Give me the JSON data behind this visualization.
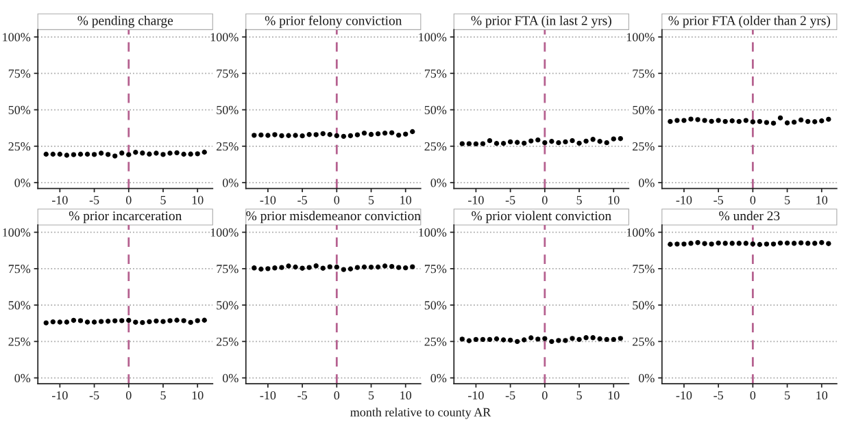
{
  "chart_data": [
    {
      "type": "scatter",
      "title": "% pending charge",
      "x": [
        -12,
        -11,
        -10,
        -9,
        -8,
        -7,
        -6,
        -5,
        -4,
        -3,
        -2,
        -1,
        0,
        1,
        2,
        3,
        4,
        5,
        6,
        7,
        8,
        9,
        10,
        11
      ],
      "series": [
        {
          "color": "#000000",
          "values": [
            19.5,
            19.5,
            19.5,
            18.8,
            19.2,
            19.5,
            19.5,
            19.3,
            20.2,
            19.3,
            18.3,
            20.3,
            19.2,
            20.8,
            20.3,
            19.6,
            20.2,
            19.3,
            20.2,
            20.5,
            19.5,
            19.6,
            19.8,
            20.9
          ]
        }
      ],
      "xlim": [
        -13.2,
        12.2
      ],
      "ylim": [
        -4,
        105
      ],
      "xticks": [
        -10,
        -5,
        0,
        5,
        10
      ],
      "yticks": [
        {
          "value": 0,
          "label": "0%"
        },
        {
          "value": 25,
          "label": "25%"
        },
        {
          "value": 50,
          "label": "50%"
        },
        {
          "value": 75,
          "label": "75%"
        },
        {
          "value": 100,
          "label": "100%"
        }
      ],
      "ref_lines": [
        {
          "axis": "x",
          "value": 0,
          "color": "#b5608f",
          "line_style": "dashed"
        }
      ],
      "grid": "y",
      "marker": "circle"
    },
    {
      "type": "scatter",
      "title": "% prior felony conviction",
      "x": [
        -12,
        -11,
        -10,
        -9,
        -8,
        -7,
        -6,
        -5,
        -4,
        -3,
        -2,
        -1,
        0,
        1,
        2,
        3,
        4,
        5,
        6,
        7,
        8,
        9,
        10,
        11
      ],
      "series": [
        {
          "color": "#000000",
          "values": [
            32.5,
            32.7,
            32.4,
            32.9,
            32.2,
            32.3,
            32.4,
            32.1,
            33.0,
            32.9,
            33.6,
            33.0,
            32.2,
            31.8,
            32.2,
            32.8,
            34.0,
            33.1,
            33.5,
            34.0,
            34.2,
            32.6,
            33.3,
            35.0
          ]
        }
      ],
      "xlim": [
        -13.2,
        12.2
      ],
      "ylim": [
        -4,
        105
      ],
      "xticks": [
        -10,
        -5,
        0,
        5,
        10
      ],
      "yticks": [
        {
          "value": 0,
          "label": "0%"
        },
        {
          "value": 25,
          "label": "25%"
        },
        {
          "value": 50,
          "label": "50%"
        },
        {
          "value": 75,
          "label": "75%"
        },
        {
          "value": 100,
          "label": "100%"
        }
      ],
      "ref_lines": [
        {
          "axis": "x",
          "value": 0,
          "color": "#b5608f",
          "line_style": "dashed"
        }
      ],
      "grid": "y",
      "marker": "circle"
    },
    {
      "type": "scatter",
      "title": "% prior FTA (in last 2 yrs)",
      "x": [
        -12,
        -11,
        -10,
        -9,
        -8,
        -7,
        -6,
        -5,
        -4,
        -3,
        -2,
        -1,
        0,
        1,
        2,
        3,
        4,
        5,
        6,
        7,
        8,
        9,
        10,
        11
      ],
      "series": [
        {
          "color": "#000000",
          "values": [
            26.7,
            26.7,
            26.6,
            26.7,
            28.8,
            26.9,
            26.9,
            28.0,
            27.6,
            27.1,
            28.6,
            29.3,
            27.4,
            28.3,
            27.4,
            28.0,
            28.8,
            27.1,
            28.5,
            29.7,
            28.3,
            27.4,
            30.0,
            30.2
          ]
        }
      ],
      "xlim": [
        -13.2,
        12.2
      ],
      "ylim": [
        -4,
        105
      ],
      "xticks": [
        -10,
        -5,
        0,
        5,
        10
      ],
      "yticks": [
        {
          "value": 0,
          "label": "0%"
        },
        {
          "value": 25,
          "label": "25%"
        },
        {
          "value": 50,
          "label": "50%"
        },
        {
          "value": 75,
          "label": "75%"
        },
        {
          "value": 100,
          "label": "100%"
        }
      ],
      "ref_lines": [
        {
          "axis": "x",
          "value": 0,
          "color": "#b5608f",
          "line_style": "dashed"
        }
      ],
      "grid": "y",
      "marker": "circle"
    },
    {
      "type": "scatter",
      "title": "% prior FTA (older than 2 yrs)",
      "x": [
        -12,
        -11,
        -10,
        -9,
        -8,
        -7,
        -6,
        -5,
        -4,
        -3,
        -2,
        -1,
        0,
        1,
        2,
        3,
        4,
        5,
        6,
        7,
        8,
        9,
        10,
        11
      ],
      "series": [
        {
          "color": "#000000",
          "values": [
            42.0,
            42.7,
            42.7,
            43.6,
            43.3,
            42.7,
            42.1,
            42.7,
            42.0,
            42.4,
            42.0,
            42.7,
            41.7,
            42.0,
            41.3,
            40.8,
            44.4,
            41.0,
            41.5,
            43.0,
            42.0,
            41.8,
            42.4,
            43.5
          ]
        }
      ],
      "xlim": [
        -13.2,
        12.2
      ],
      "ylim": [
        -4,
        105
      ],
      "xticks": [
        -10,
        -5,
        0,
        5,
        10
      ],
      "yticks": [
        {
          "value": 0,
          "label": "0%"
        },
        {
          "value": 25,
          "label": "25%"
        },
        {
          "value": 50,
          "label": "50%"
        },
        {
          "value": 75,
          "label": "75%"
        },
        {
          "value": 100,
          "label": "100%"
        }
      ],
      "ref_lines": [
        {
          "axis": "x",
          "value": 0,
          "color": "#b5608f",
          "line_style": "dashed"
        }
      ],
      "grid": "y",
      "marker": "circle"
    },
    {
      "type": "scatter",
      "title": "% prior incarceration",
      "x": [
        -12,
        -11,
        -10,
        -9,
        -8,
        -7,
        -6,
        -5,
        -4,
        -3,
        -2,
        -1,
        0,
        1,
        2,
        3,
        4,
        5,
        6,
        7,
        8,
        9,
        10,
        11
      ],
      "series": [
        {
          "color": "#000000",
          "values": [
            37.8,
            38.5,
            38.3,
            38.3,
            39.5,
            39.3,
            38.3,
            38.3,
            38.7,
            38.9,
            39.2,
            39.3,
            39.5,
            38.2,
            38.0,
            38.6,
            39.1,
            38.7,
            39.3,
            39.6,
            39.3,
            38.1,
            39.3,
            39.6
          ]
        }
      ],
      "xlim": [
        -13.2,
        12.2
      ],
      "ylim": [
        -4,
        105
      ],
      "xticks": [
        -10,
        -5,
        0,
        5,
        10
      ],
      "yticks": [
        {
          "value": 0,
          "label": "0%"
        },
        {
          "value": 25,
          "label": "25%"
        },
        {
          "value": 50,
          "label": "50%"
        },
        {
          "value": 75,
          "label": "75%"
        },
        {
          "value": 100,
          "label": "100%"
        }
      ],
      "ref_lines": [
        {
          "axis": "x",
          "value": 0,
          "color": "#b5608f",
          "line_style": "dashed"
        }
      ],
      "grid": "y",
      "marker": "circle"
    },
    {
      "type": "scatter",
      "title": "% prior misdemeanor conviction",
      "xlabel": "month relative to county AR",
      "x": [
        -12,
        -11,
        -10,
        -9,
        -8,
        -7,
        -6,
        -5,
        -4,
        -3,
        -2,
        -1,
        0,
        1,
        2,
        3,
        4,
        5,
        6,
        7,
        8,
        9,
        10,
        11
      ],
      "series": [
        {
          "color": "#000000",
          "values": [
            75.5,
            74.7,
            75.0,
            75.5,
            75.8,
            76.8,
            76.1,
            75.3,
            75.8,
            76.9,
            75.3,
            76.3,
            76.1,
            74.4,
            74.8,
            75.8,
            76.1,
            76.0,
            76.1,
            76.8,
            76.5,
            75.8,
            75.6,
            76.3
          ]
        }
      ],
      "xlim": [
        -13.2,
        12.2
      ],
      "ylim": [
        -4,
        105
      ],
      "xticks": [
        -10,
        -5,
        0,
        5,
        10
      ],
      "yticks": [
        {
          "value": 0,
          "label": "0%"
        },
        {
          "value": 25,
          "label": "25%"
        },
        {
          "value": 50,
          "label": "50%"
        },
        {
          "value": 75,
          "label": "75%"
        },
        {
          "value": 100,
          "label": "100%"
        }
      ],
      "ref_lines": [
        {
          "axis": "x",
          "value": 0,
          "color": "#b5608f",
          "line_style": "dashed"
        }
      ],
      "grid": "y",
      "marker": "circle"
    },
    {
      "type": "scatter",
      "title": "% prior violent conviction",
      "x": [
        -12,
        -11,
        -10,
        -9,
        -8,
        -7,
        -6,
        -5,
        -4,
        -3,
        -2,
        -1,
        0,
        1,
        2,
        3,
        4,
        5,
        6,
        7,
        8,
        9,
        10,
        11
      ],
      "series": [
        {
          "color": "#000000",
          "values": [
            26.6,
            25.5,
            26.4,
            26.4,
            26.4,
            26.8,
            26.1,
            25.9,
            25.0,
            26.1,
            27.5,
            26.6,
            27.0,
            25.0,
            25.7,
            25.7,
            27.1,
            26.4,
            27.6,
            27.6,
            26.8,
            26.4,
            26.4,
            27.1
          ]
        }
      ],
      "xlim": [
        -13.2,
        12.2
      ],
      "ylim": [
        -4,
        105
      ],
      "xticks": [
        -10,
        -5,
        0,
        5,
        10
      ],
      "yticks": [
        {
          "value": 0,
          "label": "0%"
        },
        {
          "value": 25,
          "label": "25%"
        },
        {
          "value": 50,
          "label": "50%"
        },
        {
          "value": 75,
          "label": "75%"
        },
        {
          "value": 100,
          "label": "100%"
        }
      ],
      "ref_lines": [
        {
          "axis": "x",
          "value": 0,
          "color": "#b5608f",
          "line_style": "dashed"
        }
      ],
      "grid": "y",
      "marker": "circle"
    },
    {
      "type": "scatter",
      "title": "% under 23",
      "x": [
        -12,
        -11,
        -10,
        -9,
        -8,
        -7,
        -6,
        -5,
        -4,
        -3,
        -2,
        -1,
        0,
        1,
        2,
        3,
        4,
        5,
        6,
        7,
        8,
        9,
        10,
        11
      ],
      "series": [
        {
          "color": "#000000",
          "values": [
            91.7,
            91.9,
            91.9,
            92.4,
            92.9,
            92.2,
            91.9,
            92.6,
            92.4,
            92.4,
            92.4,
            92.4,
            92.0,
            91.6,
            91.9,
            91.9,
            92.6,
            92.6,
            92.4,
            92.7,
            92.4,
            92.4,
            92.9,
            92.2
          ]
        }
      ],
      "xlim": [
        -13.2,
        12.2
      ],
      "ylim": [
        -4,
        105
      ],
      "xticks": [
        -10,
        -5,
        0,
        5,
        10
      ],
      "yticks": [
        {
          "value": 0,
          "label": "0%"
        },
        {
          "value": 25,
          "label": "25%"
        },
        {
          "value": 50,
          "label": "50%"
        },
        {
          "value": 75,
          "label": "75%"
        },
        {
          "value": 100,
          "label": "100%"
        }
      ],
      "ref_lines": [
        {
          "axis": "x",
          "value": 0,
          "color": "#b5608f",
          "line_style": "dashed"
        }
      ],
      "grid": "y",
      "marker": "circle"
    }
  ]
}
